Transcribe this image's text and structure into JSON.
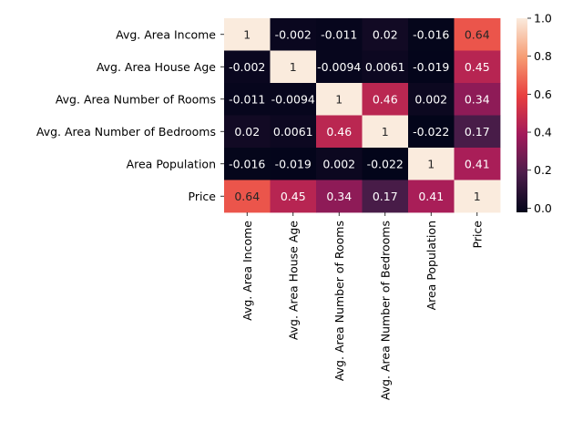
{
  "chart_data": {
    "type": "heatmap",
    "rows": [
      "Avg. Area Income",
      "Avg. Area House Age",
      "Avg. Area Number of Rooms",
      "Avg. Area Number of Bedrooms",
      "Area Population",
      "Price"
    ],
    "columns": [
      "Avg. Area Income",
      "Avg. Area House Age",
      "Avg. Area Number of Rooms",
      "Avg. Area Number of Bedrooms",
      "Area Population",
      "Price"
    ],
    "values": [
      [
        1,
        -0.002,
        -0.011,
        0.02,
        -0.016,
        0.64
      ],
      [
        -0.002,
        1,
        -0.0094,
        0.0061,
        -0.019,
        0.45
      ],
      [
        -0.011,
        -0.0094,
        1,
        0.46,
        0.002,
        0.34
      ],
      [
        0.02,
        0.0061,
        0.46,
        1,
        -0.022,
        0.17
      ],
      [
        -0.016,
        -0.019,
        0.002,
        -0.022,
        1,
        0.41
      ],
      [
        0.64,
        0.45,
        0.34,
        0.17,
        0.41,
        1
      ]
    ],
    "cell_labels": [
      [
        "1",
        "-0.002",
        "-0.011",
        "0.02",
        "-0.016",
        "0.64"
      ],
      [
        "-0.002",
        "1",
        "-0.0094",
        "0.0061",
        "-0.019",
        "0.45"
      ],
      [
        "-0.011",
        "-0.0094",
        "1",
        "0.46",
        "0.002",
        "0.34"
      ],
      [
        "0.02",
        "0.0061",
        "0.46",
        "1",
        "-0.022",
        "0.17"
      ],
      [
        "-0.016",
        "-0.019",
        "0.002",
        "-0.022",
        "1",
        "0.41"
      ],
      [
        "0.64",
        "0.45",
        "0.34",
        "0.17",
        "0.41",
        "1"
      ]
    ],
    "colorbar": {
      "vmin": -0.022,
      "vmax": 1,
      "ticks": [
        0.0,
        0.2,
        0.4,
        0.6,
        0.8,
        1.0
      ],
      "tick_labels": [
        "0.0",
        "0.2",
        "0.4",
        "0.6",
        "0.8",
        "1.0"
      ],
      "colormap": "rocket",
      "colormap_stops": [
        "#03051a",
        "#4c1d4b",
        "#a11a5b",
        "#e83f3f",
        "#f69c73",
        "#faebdd"
      ]
    },
    "title": "",
    "xlabel": "",
    "ylabel": ""
  }
}
